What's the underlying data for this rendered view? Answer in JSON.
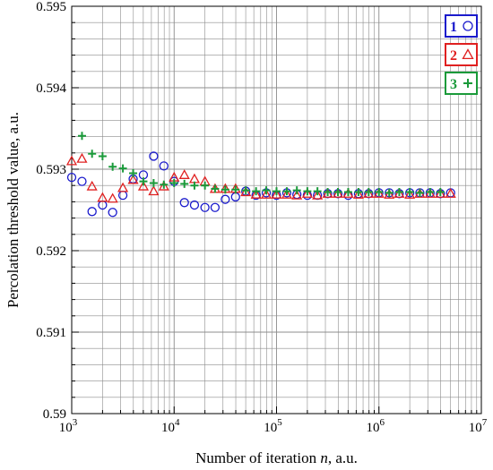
{
  "chart_data": {
    "type": "scatter",
    "xlabel_prefix": "Number of iteration ",
    "xlabel_var": "n",
    "xlabel_suffix": ", a.u.",
    "ylabel": "Percolation threshold value, a.u.",
    "xscale": "log",
    "xlim": [
      1000,
      10000000
    ],
    "ylim": [
      0.59,
      0.595
    ],
    "grid": true,
    "legend_position": "top-right",
    "xticks": [
      {
        "value": 1000,
        "base": "10",
        "exp": "3"
      },
      {
        "value": 10000,
        "base": "10",
        "exp": "4"
      },
      {
        "value": 100000,
        "base": "10",
        "exp": "5"
      },
      {
        "value": 1000000,
        "base": "10",
        "exp": "6"
      },
      {
        "value": 10000000,
        "base": "10",
        "exp": "7"
      }
    ],
    "yticks": [
      {
        "value": 0.59,
        "label": "0.59"
      },
      {
        "value": 0.591,
        "label": "0.591"
      },
      {
        "value": 0.592,
        "label": "0.592"
      },
      {
        "value": 0.593,
        "label": "0.593"
      },
      {
        "value": 0.594,
        "label": "0.594"
      },
      {
        "value": 0.595,
        "label": "0.595"
      }
    ],
    "series": [
      {
        "name": "1",
        "marker": "circle",
        "color": "#1a1acc",
        "points": [
          [
            1000,
            0.5929
          ],
          [
            1260,
            0.59285
          ],
          [
            1580,
            0.59248
          ],
          [
            2000,
            0.59256
          ],
          [
            2510,
            0.59247
          ],
          [
            3160,
            0.59268
          ],
          [
            3980,
            0.59288
          ],
          [
            5010,
            0.59293
          ],
          [
            6310,
            0.59316
          ],
          [
            7940,
            0.59304
          ],
          [
            10000,
            0.59285
          ],
          [
            12600,
            0.59259
          ],
          [
            15800,
            0.59256
          ],
          [
            20000,
            0.59253
          ],
          [
            25100,
            0.59253
          ],
          [
            31600,
            0.59263
          ],
          [
            39800,
            0.59266
          ],
          [
            50100,
            0.59273
          ],
          [
            63100,
            0.59268
          ],
          [
            79400,
            0.59271
          ],
          [
            100000,
            0.59268
          ],
          [
            126000,
            0.59271
          ],
          [
            158000,
            0.59269
          ],
          [
            200000,
            0.59268
          ],
          [
            251000,
            0.59268
          ],
          [
            316000,
            0.5927
          ],
          [
            398000,
            0.5927
          ],
          [
            501000,
            0.59268
          ],
          [
            631000,
            0.5927
          ],
          [
            794000,
            0.5927
          ],
          [
            1000000,
            0.59271
          ],
          [
            1260000,
            0.59271
          ],
          [
            1580000,
            0.5927
          ],
          [
            2000000,
            0.59271
          ],
          [
            2510000,
            0.59271
          ],
          [
            3160000,
            0.59271
          ],
          [
            3980000,
            0.5927
          ],
          [
            5010000,
            0.59271
          ]
        ]
      },
      {
        "name": "2",
        "marker": "triangle",
        "color": "#e02020",
        "points": [
          [
            1000,
            0.5931
          ],
          [
            1260,
            0.59313
          ],
          [
            1580,
            0.59279
          ],
          [
            2000,
            0.59265
          ],
          [
            2510,
            0.59264
          ],
          [
            3160,
            0.59277
          ],
          [
            3980,
            0.59287
          ],
          [
            5010,
            0.59279
          ],
          [
            6310,
            0.59273
          ],
          [
            7940,
            0.59279
          ],
          [
            10000,
            0.5929
          ],
          [
            12600,
            0.59293
          ],
          [
            15800,
            0.59288
          ],
          [
            20000,
            0.59285
          ],
          [
            25100,
            0.59276
          ],
          [
            31600,
            0.59276
          ],
          [
            39800,
            0.59276
          ],
          [
            50100,
            0.59272
          ],
          [
            63100,
            0.59269
          ],
          [
            79400,
            0.59269
          ],
          [
            100000,
            0.59269
          ],
          [
            126000,
            0.59269
          ],
          [
            158000,
            0.59268
          ],
          [
            200000,
            0.5927
          ],
          [
            251000,
            0.59268
          ],
          [
            316000,
            0.5927
          ],
          [
            398000,
            0.5927
          ],
          [
            501000,
            0.5927
          ],
          [
            631000,
            0.59269
          ],
          [
            794000,
            0.5927
          ],
          [
            1000000,
            0.5927
          ],
          [
            1260000,
            0.59269
          ],
          [
            1580000,
            0.5927
          ],
          [
            2000000,
            0.59269
          ],
          [
            2510000,
            0.5927
          ],
          [
            3160000,
            0.5927
          ],
          [
            3980000,
            0.5927
          ],
          [
            5010000,
            0.5927
          ]
        ]
      },
      {
        "name": "3",
        "marker": "plus",
        "color": "#1a9a3a",
        "points": [
          [
            1260,
            0.59341
          ],
          [
            1580,
            0.59319
          ],
          [
            2000,
            0.59316
          ],
          [
            2510,
            0.59303
          ],
          [
            3160,
            0.59301
          ],
          [
            3980,
            0.59295
          ],
          [
            5010,
            0.59285
          ],
          [
            6310,
            0.59283
          ],
          [
            7940,
            0.59281
          ],
          [
            10000,
            0.59283
          ],
          [
            12600,
            0.59282
          ],
          [
            15800,
            0.5928
          ],
          [
            20000,
            0.5928
          ],
          [
            25100,
            0.59276
          ],
          [
            31600,
            0.59275
          ],
          [
            39800,
            0.59275
          ],
          [
            50100,
            0.59274
          ],
          [
            63100,
            0.59273
          ],
          [
            79400,
            0.59274
          ],
          [
            100000,
            0.59273
          ],
          [
            126000,
            0.59273
          ],
          [
            158000,
            0.59274
          ],
          [
            200000,
            0.59273
          ],
          [
            251000,
            0.59273
          ],
          [
            316000,
            0.59272
          ],
          [
            398000,
            0.59272
          ],
          [
            501000,
            0.59272
          ],
          [
            631000,
            0.59272
          ],
          [
            794000,
            0.59272
          ],
          [
            1000000,
            0.59272
          ],
          [
            1260000,
            0.59271
          ],
          [
            1580000,
            0.59272
          ],
          [
            2000000,
            0.59272
          ],
          [
            2510000,
            0.59271
          ],
          [
            3160000,
            0.59272
          ],
          [
            3980000,
            0.59272
          ]
        ]
      }
    ]
  }
}
